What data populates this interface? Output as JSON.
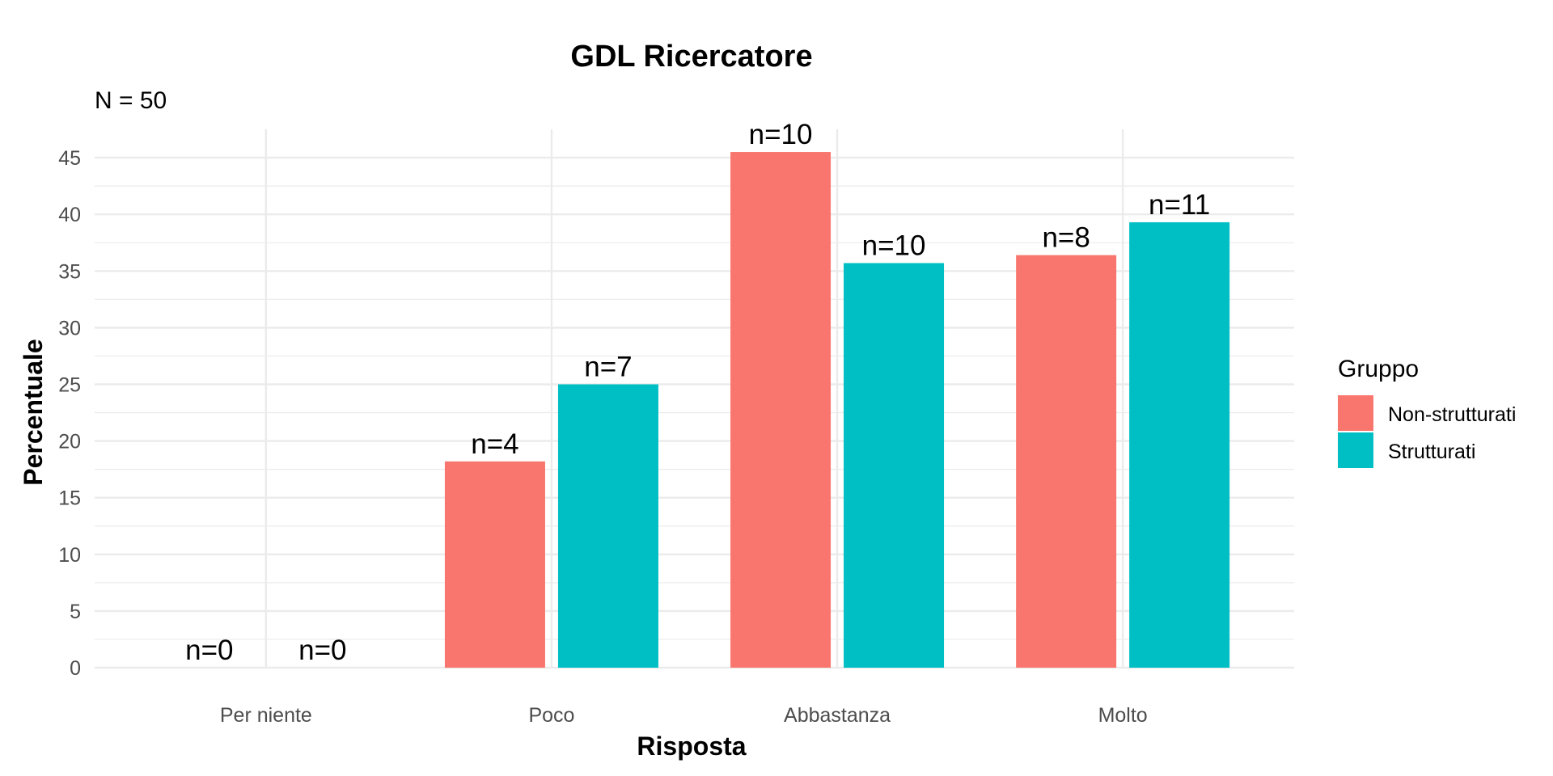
{
  "chart_data": {
    "type": "bar",
    "title": "GDL Ricercatore",
    "subtitle": "N = 50",
    "xlabel": "Risposta",
    "ylabel": "Percentuale",
    "categories": [
      "Per niente",
      "Poco",
      "Abbastanza",
      "Molto"
    ],
    "ylim": [
      0,
      47.5
    ],
    "yticks": [
      0,
      5,
      10,
      15,
      20,
      25,
      30,
      35,
      40,
      45
    ],
    "grid": true,
    "legend": {
      "title": "Gruppo",
      "position": "right"
    },
    "series": [
      {
        "name": "Non-strutturati",
        "color": "#F8766D",
        "values": [
          0,
          18.2,
          45.5,
          36.4
        ],
        "labels": [
          "n=0",
          "n=4",
          "n=10",
          "n=8"
        ]
      },
      {
        "name": "Strutturati",
        "color": "#00BFC4",
        "values": [
          0,
          25.0,
          35.7,
          39.3
        ],
        "labels": [
          "n=0",
          "n=7",
          "n=10",
          "n=11"
        ]
      }
    ]
  }
}
